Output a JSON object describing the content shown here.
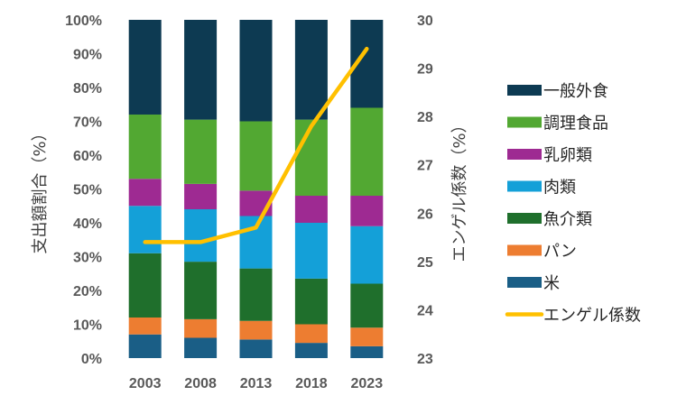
{
  "chart_data": {
    "type": "bar",
    "stacked": true,
    "normalized": true,
    "categories": [
      "2003",
      "2008",
      "2013",
      "2018",
      "2023"
    ],
    "series": [
      {
        "name": "米",
        "color": "#1a5e86",
        "values": [
          7.0,
          6.0,
          5.5,
          4.5,
          3.5
        ]
      },
      {
        "name": "パン",
        "color": "#ed7d31",
        "values": [
          5.0,
          5.5,
          5.5,
          5.5,
          5.5
        ]
      },
      {
        "name": "魚介類",
        "color": "#1f6f2c",
        "values": [
          19.0,
          17.0,
          15.5,
          13.5,
          13.0
        ]
      },
      {
        "name": "肉類",
        "color": "#14a0d8",
        "values": [
          14.0,
          15.5,
          15.5,
          16.5,
          17.0
        ]
      },
      {
        "name": "乳卵類",
        "color": "#9e2a92",
        "values": [
          8.0,
          7.5,
          7.5,
          8.0,
          9.0
        ]
      },
      {
        "name": "調理食品",
        "color": "#52a832",
        "values": [
          19.0,
          19.0,
          20.5,
          22.5,
          26.0
        ]
      },
      {
        "name": "一般外食",
        "color": "#0d3a52",
        "values": [
          28.0,
          29.5,
          30.0,
          29.5,
          26.0
        ]
      }
    ],
    "line_series": {
      "name": "エンゲル係数",
      "color": "#ffc000",
      "values": [
        25.4,
        25.4,
        25.7,
        27.8,
        29.4
      ]
    },
    "ylabel": "支出額割合（%）",
    "y2label": "エンゲル係数（%）",
    "ylim": [
      0,
      100
    ],
    "y2lim": [
      23,
      30
    ],
    "yticks": [
      "0%",
      "10%",
      "20%",
      "30%",
      "40%",
      "50%",
      "60%",
      "70%",
      "80%",
      "90%",
      "100%"
    ],
    "y2ticks": [
      "23",
      "24",
      "25",
      "26",
      "27",
      "28",
      "29",
      "30"
    ],
    "legend_position": "right",
    "legend_order": [
      "一般外食",
      "調理食品",
      "乳卵類",
      "肉類",
      "魚介類",
      "パン",
      "米",
      "エンゲル係数"
    ]
  }
}
